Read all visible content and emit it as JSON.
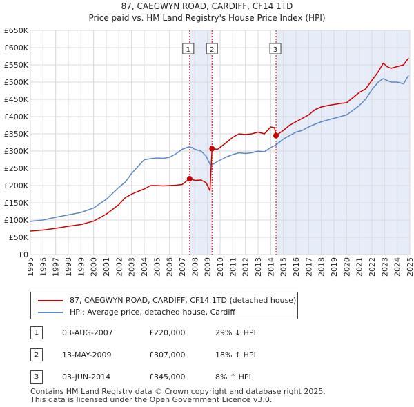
{
  "title_line1": "87, CAEGWYN ROAD, CARDIFF, CF14 1TD",
  "title_line2": "Price paid vs. HM Land Registry's House Price Index (HPI)",
  "chart_data": {
    "type": "line",
    "xlim": [
      1995,
      2025
    ],
    "ylim": [
      0,
      650000
    ],
    "yticks": [
      0,
      50000,
      100000,
      150000,
      200000,
      250000,
      300000,
      350000,
      400000,
      450000,
      500000,
      550000,
      600000,
      650000
    ],
    "ytick_labels": [
      "£0",
      "£50K",
      "£100K",
      "£150K",
      "£200K",
      "£250K",
      "£300K",
      "£350K",
      "£400K",
      "£450K",
      "£500K",
      "£550K",
      "£600K",
      "£650K"
    ],
    "xticks": [
      "1995",
      "1996",
      "1997",
      "1998",
      "1999",
      "2000",
      "2001",
      "2002",
      "2003",
      "2004",
      "2005",
      "2006",
      "2007",
      "2008",
      "2009",
      "2010",
      "2011",
      "2012",
      "2013",
      "2014",
      "2015",
      "2016",
      "2017",
      "2018",
      "2019",
      "2020",
      "2021",
      "2022",
      "2023",
      "2024",
      "2025"
    ],
    "series": [
      {
        "name": "87, CAEGWYN ROAD, CARDIFF, CF14 1TD (detached house)",
        "color": "#cc0000",
        "x": [
          1995.0,
          1996.0,
          1997.0,
          1998.0,
          1999.0,
          2000.0,
          2001.0,
          2002.0,
          2002.5,
          2003.0,
          2003.5,
          2004.0,
          2004.5,
          2005.0,
          2005.5,
          2006.0,
          2006.5,
          2007.0,
          2007.59,
          2008.0,
          2008.5,
          2008.9,
          2009.2,
          2009.36,
          2009.8,
          2010.5,
          2011.0,
          2011.5,
          2012.0,
          2012.5,
          2013.0,
          2013.5,
          2014.0,
          2014.3,
          2014.42,
          2015.0,
          2015.5,
          2016.0,
          2016.5,
          2017.0,
          2017.5,
          2018.0,
          2018.5,
          2019.0,
          2019.5,
          2020.0,
          2020.5,
          2021.0,
          2021.5,
          2022.0,
          2022.5,
          2022.9,
          2023.2,
          2023.5,
          2024.0,
          2024.5,
          2024.9
        ],
        "values": [
          68000,
          71000,
          76000,
          82000,
          87000,
          97000,
          117000,
          145000,
          165000,
          175000,
          183000,
          190000,
          200000,
          200000,
          199000,
          200000,
          201000,
          203000,
          220000,
          215000,
          216000,
          208000,
          185000,
          307000,
          305000,
          325000,
          340000,
          350000,
          348000,
          350000,
          355000,
          350000,
          370000,
          368000,
          345000,
          360000,
          375000,
          385000,
          395000,
          405000,
          420000,
          428000,
          432000,
          435000,
          438000,
          440000,
          455000,
          470000,
          480000,
          505000,
          530000,
          555000,
          545000,
          540000,
          545000,
          550000,
          570000
        ]
      },
      {
        "name": "HPI: Average price, detached house, Cardiff",
        "color": "#5b87c5",
        "x": [
          1995.0,
          1996.0,
          1997.0,
          1998.0,
          1999.0,
          2000.0,
          2001.0,
          2002.0,
          2002.5,
          2003.0,
          2003.5,
          2004.0,
          2004.5,
          2005.0,
          2005.5,
          2006.0,
          2006.5,
          2007.0,
          2007.5,
          2007.8,
          2008.0,
          2008.5,
          2008.9,
          2009.2,
          2009.36,
          2009.8,
          2010.5,
          2011.0,
          2011.5,
          2012.0,
          2012.5,
          2013.0,
          2013.5,
          2014.0,
          2014.42,
          2015.0,
          2015.5,
          2016.0,
          2016.5,
          2017.0,
          2017.5,
          2018.0,
          2018.5,
          2019.0,
          2019.5,
          2020.0,
          2020.5,
          2021.0,
          2021.5,
          2022.0,
          2022.5,
          2022.9,
          2023.2,
          2023.5,
          2024.0,
          2024.5,
          2024.9
        ],
        "values": [
          96000,
          100000,
          108000,
          115000,
          122000,
          135000,
          160000,
          195000,
          210000,
          235000,
          255000,
          275000,
          278000,
          280000,
          279000,
          282000,
          292000,
          305000,
          312000,
          310000,
          305000,
          300000,
          285000,
          262000,
          260000,
          270000,
          283000,
          290000,
          295000,
          293000,
          295000,
          300000,
          298000,
          310000,
          318000,
          335000,
          345000,
          355000,
          360000,
          370000,
          378000,
          385000,
          390000,
          395000,
          400000,
          405000,
          418000,
          432000,
          450000,
          478000,
          500000,
          510000,
          505000,
          500000,
          500000,
          495000,
          520000
        ]
      }
    ],
    "shaded_ranges": [
      [
        2007.59,
        2009.36
      ]
    ],
    "markers": [
      {
        "label": "1",
        "x": 2007.59,
        "price": 220000
      },
      {
        "label": "2",
        "x": 2009.36,
        "price": 307000
      },
      {
        "label": "3",
        "x": 2014.42,
        "price": 345000
      }
    ]
  },
  "legend": {
    "property": "87, CAEGWYN ROAD, CARDIFF, CF14 1TD (detached house)",
    "hpi": "HPI: Average price, detached house, Cardiff"
  },
  "transactions": [
    {
      "num": "1",
      "date": "03-AUG-2007",
      "price": "£220,000",
      "hpi": "29% ↓ HPI"
    },
    {
      "num": "2",
      "date": "13-MAY-2009",
      "price": "£307,000",
      "hpi": "18% ↑ HPI"
    },
    {
      "num": "3",
      "date": "03-JUN-2014",
      "price": "£345,000",
      "hpi": "8% ↑ HPI"
    }
  ],
  "footer_line1": "Contains HM Land Registry data © Crown copyright and database right 2025.",
  "footer_line2": "This data is licensed under the Open Government Licence v3.0."
}
